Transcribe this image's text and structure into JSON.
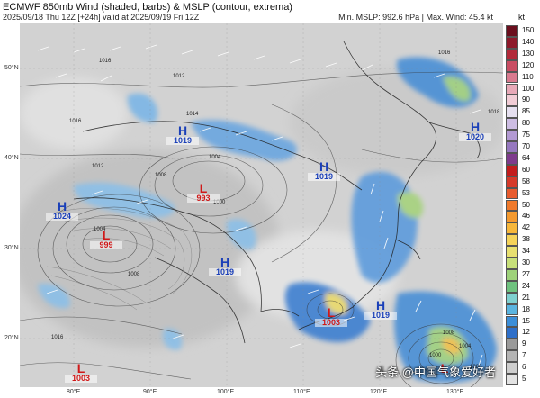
{
  "header": {
    "title": "ECMWF 850mb Wind (shaded, barbs) & MSLP (contour, extrema)",
    "subtitle": "2025/09/18 Thu 12Z [+24h] valid at 2025/09/19 Fri 12Z",
    "stats": "Min. MSLP: 992.6 hPa | Max. Wind: 45.4 kt"
  },
  "axes": {
    "lat_labels": [
      "50°N",
      "40°N",
      "30°N",
      "20°N"
    ],
    "lon_labels": [
      "80°E",
      "90°E",
      "100°E",
      "110°E",
      "120°E",
      "130°E"
    ]
  },
  "pressure_centers": [
    {
      "type": "H",
      "value": "1019"
    },
    {
      "type": "L",
      "value": "993"
    },
    {
      "type": "H",
      "value": "1019"
    },
    {
      "type": "H",
      "value": "1020"
    },
    {
      "type": "H",
      "value": "1024"
    },
    {
      "type": "L",
      "value": "999"
    },
    {
      "type": "H",
      "value": "1019"
    },
    {
      "type": "L",
      "value": "1003"
    },
    {
      "type": "H",
      "value": "1019"
    },
    {
      "type": "L",
      "value": "1003"
    },
    {
      "type": "L",
      "value": ""
    }
  ],
  "contour_labels": [
    "1016",
    "1012",
    "1014",
    "1016",
    "1012",
    "1008",
    "1004",
    "1000",
    "1004",
    "1008",
    "1016",
    "1008",
    "1004",
    "1000",
    "1006",
    "1016",
    "1018"
  ],
  "colorbar": {
    "unit": "kt",
    "levels": [
      "150",
      "140",
      "130",
      "120",
      "110",
      "100",
      "90",
      "85",
      "80",
      "75",
      "70",
      "64",
      "60",
      "58",
      "53",
      "50",
      "46",
      "42",
      "38",
      "34",
      "30",
      "27",
      "24",
      "21",
      "18",
      "15",
      "12",
      "9",
      "7",
      "6",
      "5"
    ],
    "colors": [
      "#6b0f1e",
      "#8e1a2b",
      "#b22a3a",
      "#c94d63",
      "#d97a8f",
      "#e8a9b8",
      "#f2cdd6",
      "#e6e0f0",
      "#cdbde3",
      "#b39ad3",
      "#9678bf",
      "#7e3b8c",
      "#c31d1d",
      "#d63a2a",
      "#e85b2e",
      "#f07a2c",
      "#f59a2f",
      "#f7b73b",
      "#f5d35a",
      "#e8e070",
      "#c8e07a",
      "#9ed27a",
      "#6fc27f",
      "#7fd0d0",
      "#5ab4e0",
      "#3c8ed8",
      "#2e6fc9",
      "#9a9a9a",
      "#b4b4b4",
      "#cecece",
      "#e3e3e3"
    ]
  },
  "watermark": "头条 @中国气象爱好者"
}
